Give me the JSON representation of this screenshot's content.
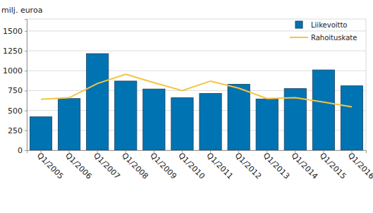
{
  "chart_data": {
    "type": "bar",
    "y_label": "milj. euroa",
    "categories": [
      "Q1/2005",
      "Q1/2006",
      "Q1/2007",
      "Q1/2008",
      "Q1/2009",
      "Q1/2010",
      "Q1/2011",
      "Q1/2012",
      "Q1/2013",
      "Q1/2014",
      "Q1/2015",
      "Q1/2016"
    ],
    "series": [
      {
        "name": "Liikevoitto",
        "type": "bar",
        "color": "#0074b3",
        "values": [
          420,
          650,
          1215,
          870,
          770,
          660,
          715,
          830,
          645,
          775,
          1010,
          810
        ]
      },
      {
        "name": "Rahoituskate",
        "type": "line",
        "color": "#f6c342",
        "values": [
          640,
          660,
          840,
          955,
          850,
          750,
          870,
          780,
          650,
          660,
          605,
          545
        ]
      }
    ],
    "ylim": [
      0,
      1650
    ],
    "yticks": [
      0,
      250,
      500,
      750,
      1000,
      1250,
      1500
    ],
    "grid": true,
    "legend": "top-right"
  }
}
